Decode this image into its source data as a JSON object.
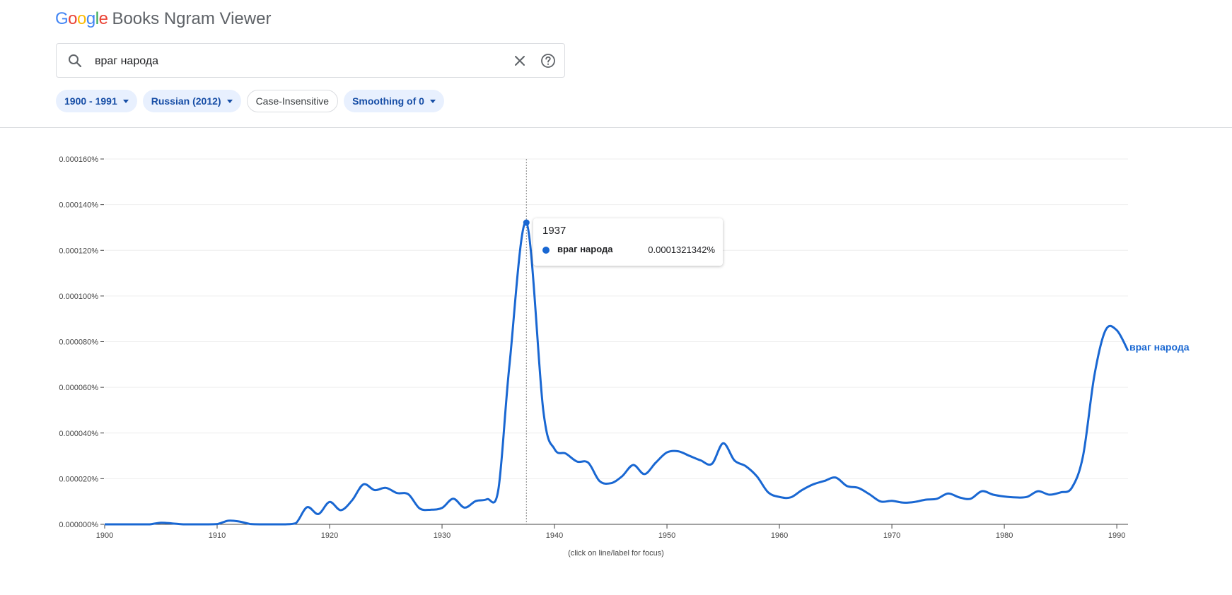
{
  "header": {
    "logo_text": "Google",
    "title": "Books Ngram Viewer",
    "logo_colors": [
      "#4285F4",
      "#EA4335",
      "#FBBC05",
      "#4285F4",
      "#34A853",
      "#EA4335"
    ]
  },
  "search": {
    "value": "враг народа",
    "search_icon": "search-icon",
    "clear_icon": "close-icon",
    "help_icon": "help-icon"
  },
  "filters": {
    "years": "1900 - 1991",
    "corpus": "Russian (2012)",
    "case": "Case-Insensitive",
    "smoothing": "Smoothing of 0"
  },
  "tooltip": {
    "year": "1937",
    "term": "враг народа",
    "value": "0.0001321342%"
  },
  "series_label": "враг народа",
  "footnote": "(click on line/label for focus)",
  "colors": {
    "series": "#1967d2",
    "chip_bg": "#e8f0fe",
    "chip_text": "#174ea6"
  },
  "chart_data": {
    "type": "line",
    "title": "",
    "xlabel": "",
    "ylabel": "",
    "xlim": [
      1900,
      1991
    ],
    "ylim": [
      0,
      0.00016
    ],
    "y_ticks": [
      "0.000000%",
      "0.000020%",
      "0.000040%",
      "0.000060%",
      "0.000080%",
      "0.000100%",
      "0.000120%",
      "0.000140%",
      "0.000160%"
    ],
    "x_ticks": [
      1900,
      1910,
      1920,
      1930,
      1940,
      1950,
      1960,
      1970,
      1980,
      1990
    ],
    "grid": true,
    "focus_year": 1937.5,
    "series": [
      {
        "name": "враг народа",
        "x": [
          1900,
          1901,
          1902,
          1903,
          1904,
          1905,
          1906,
          1907,
          1908,
          1909,
          1910,
          1911,
          1912,
          1913,
          1914,
          1915,
          1916,
          1917,
          1918,
          1919,
          1920,
          1921,
          1922,
          1923,
          1924,
          1925,
          1926,
          1927,
          1928,
          1929,
          1930,
          1931,
          1932,
          1933,
          1934,
          1935,
          1936,
          1937.5,
          1939,
          1940,
          1941,
          1942,
          1943,
          1944,
          1945,
          1946,
          1947,
          1948,
          1949,
          1950,
          1951,
          1952,
          1953,
          1954,
          1955,
          1956,
          1957,
          1958,
          1959,
          1960,
          1961,
          1962,
          1963,
          1964,
          1965,
          1966,
          1967,
          1968,
          1969,
          1970,
          1971,
          1972,
          1973,
          1974,
          1975,
          1976,
          1977,
          1978,
          1979,
          1980,
          1981,
          1982,
          1983,
          1984,
          1985,
          1986,
          1987,
          1988,
          1989,
          1990,
          1991
        ],
        "values": [
          0,
          0,
          0,
          0,
          0,
          7e-07,
          4e-07,
          0,
          0,
          0,
          1e-07,
          1.6e-06,
          1.2e-06,
          1e-07,
          0,
          0,
          0,
          5e-07,
          7.5e-06,
          4.5e-06,
          9.8e-06,
          6.2e-06,
          1.05e-05,
          1.75e-05,
          1.5e-05,
          1.6e-05,
          1.37e-05,
          1.32e-05,
          7e-06,
          6.4e-06,
          7.2e-06,
          1.12e-05,
          7.3e-06,
          1.02e-05,
          1.1e-05,
          1.5e-05,
          7e-05,
          0.0001321342,
          5e-05,
          3.3e-05,
          3.1e-05,
          2.75e-05,
          2.7e-05,
          1.9e-05,
          1.8e-05,
          2.1e-05,
          2.6e-05,
          2.2e-05,
          2.7e-05,
          3.15e-05,
          3.2e-05,
          3e-05,
          2.8e-05,
          2.65e-05,
          3.55e-05,
          2.8e-05,
          2.55e-05,
          2.1e-05,
          1.4e-05,
          1.2e-05,
          1.18e-05,
          1.5e-05,
          1.75e-05,
          1.9e-05,
          2.05e-05,
          1.68e-05,
          1.6e-05,
          1.32e-05,
          1e-05,
          1.03e-05,
          9.5e-06,
          9.8e-06,
          1.08e-05,
          1.12e-05,
          1.35e-05,
          1.18e-05,
          1.12e-05,
          1.45e-05,
          1.3e-05,
          1.22e-05,
          1.18e-05,
          1.2e-05,
          1.45e-05,
          1.3e-05,
          1.4e-05,
          1.6e-05,
          3e-05,
          6.5e-05,
          8.5e-05,
          8.5e-05,
          7.6e-05
        ]
      }
    ]
  }
}
